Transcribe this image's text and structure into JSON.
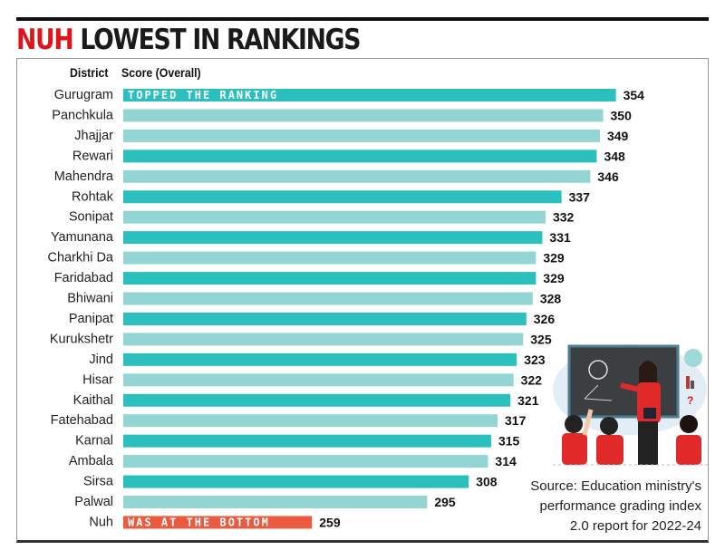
{
  "title_highlight": "NUH",
  "title_rest": "LOWEST IN RANKINGS",
  "headers": {
    "district": "District",
    "score": "Score (Overall)"
  },
  "source": "Source: Education ministry's performance grading index 2.0 report for 2022-24",
  "colors": {
    "dark_teal": "#2bc0bd",
    "light_teal": "#93d5d3",
    "bottom": "#ea5a3e",
    "title_red": "#e1141c"
  },
  "illustration": "teacher-at-blackboard-with-students",
  "chart_data": {
    "type": "bar",
    "orientation": "horizontal",
    "xlabel": "Score (Overall)",
    "ylabel": "District",
    "categories": [
      "Gurugram",
      "Panchkula",
      "Jhajjar",
      "Rewari",
      "Mahendra",
      "Rohtak",
      "Sonipat",
      "Yamunana",
      "Charkhi Da",
      "Faridabad",
      "Bhiwani",
      "Panipat",
      "Kurukshetr",
      "Jind",
      "Hisar",
      "Kaithal",
      "Fatehabad",
      "Karnal",
      "Ambala",
      "Sirsa",
      "Palwal",
      "Nuh"
    ],
    "values": [
      354,
      350,
      349,
      348,
      346,
      337,
      332,
      331,
      329,
      329,
      328,
      326,
      325,
      323,
      322,
      321,
      317,
      315,
      314,
      308,
      295,
      259
    ],
    "bar_shade": [
      "dark",
      "light",
      "light",
      "dark",
      "light",
      "dark",
      "light",
      "dark",
      "light",
      "dark",
      "light",
      "dark",
      "light",
      "dark",
      "light",
      "dark",
      "light",
      "dark",
      "light",
      "dark",
      "light",
      "bottom"
    ],
    "annotations": [
      {
        "category": "Gurugram",
        "text": "TOPPED THE RANKING"
      },
      {
        "category": "Nuh",
        "text": "WAS AT THE BOTTOM"
      }
    ],
    "grid": false
  }
}
